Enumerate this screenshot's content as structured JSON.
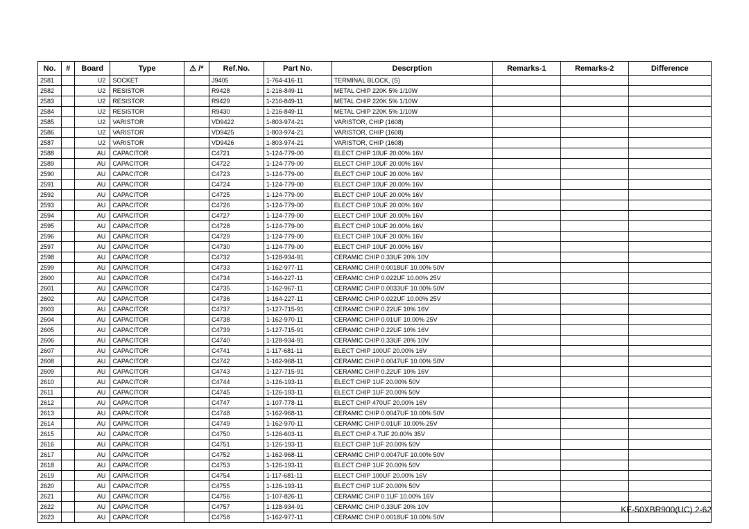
{
  "footer": "KE-50XBR900(UC)    2-62",
  "headers": {
    "no": "No.",
    "hash": "#",
    "board": "Board",
    "type": "Type",
    "warn": "⚠ /*",
    "ref": "Ref.No.",
    "part": "Part No.",
    "desc": "Descrption",
    "rem1": "Remarks-1",
    "rem2": "Remarks-2",
    "diff": "Difference"
  },
  "rows": [
    {
      "no": "2581",
      "board": "U2",
      "type": "SOCKET",
      "ref": "J9405",
      "part": "1-764-416-11",
      "desc": "TERMINAL BLOCK, (S)"
    },
    {
      "no": "2582",
      "board": "U2",
      "type": "RESISTOR",
      "ref": "R9428",
      "part": "1-216-849-11",
      "desc": "METAL CHIP     220K  5%     1/10W"
    },
    {
      "no": "2583",
      "board": "U2",
      "type": "RESISTOR",
      "ref": "R9429",
      "part": "1-216-849-11",
      "desc": "METAL CHIP     220K  5%     1/10W"
    },
    {
      "no": "2584",
      "board": "U2",
      "type": "RESISTOR",
      "ref": "R9430",
      "part": "1-216-849-11",
      "desc": "METAL CHIP     220K  5%     1/10W"
    },
    {
      "no": "2585",
      "board": "U2",
      "type": "VARISTOR",
      "ref": "VD9422",
      "part": "1-803-974-21",
      "desc": "VARISTOR, CHIP               (1608)"
    },
    {
      "no": "2586",
      "board": "U2",
      "type": "VARISTOR",
      "ref": "VD9425",
      "part": "1-803-974-21",
      "desc": "VARISTOR, CHIP               (1608)"
    },
    {
      "no": "2587",
      "board": "U2",
      "type": "VARISTOR",
      "ref": "VD9426",
      "part": "1-803-974-21",
      "desc": "VARISTOR, CHIP               (1608)"
    },
    {
      "no": "2588",
      "board": "AU",
      "type": "CAPACITOR",
      "ref": "C4721",
      "part": "1-124-779-00",
      "desc": "ELECT CHIP    10UF          20.00% 16V"
    },
    {
      "no": "2589",
      "board": "AU",
      "type": "CAPACITOR",
      "ref": "C4722",
      "part": "1-124-779-00",
      "desc": "ELECT CHIP    10UF          20.00% 16V"
    },
    {
      "no": "2590",
      "board": "AU",
      "type": "CAPACITOR",
      "ref": "C4723",
      "part": "1-124-779-00",
      "desc": "ELECT CHIP    10UF          20.00% 16V"
    },
    {
      "no": "2591",
      "board": "AU",
      "type": "CAPACITOR",
      "ref": "C4724",
      "part": "1-124-779-00",
      "desc": "ELECT CHIP    10UF          20.00% 16V"
    },
    {
      "no": "2592",
      "board": "AU",
      "type": "CAPACITOR",
      "ref": "C4725",
      "part": "1-124-779-00",
      "desc": "ELECT CHIP    10UF          20.00% 16V"
    },
    {
      "no": "2593",
      "board": "AU",
      "type": "CAPACITOR",
      "ref": "C4726",
      "part": "1-124-779-00",
      "desc": "ELECT CHIP    10UF          20.00% 16V"
    },
    {
      "no": "2594",
      "board": "AU",
      "type": "CAPACITOR",
      "ref": "C4727",
      "part": "1-124-779-00",
      "desc": "ELECT CHIP    10UF          20.00% 16V"
    },
    {
      "no": "2595",
      "board": "AU",
      "type": "CAPACITOR",
      "ref": "C4728",
      "part": "1-124-779-00",
      "desc": "ELECT CHIP    10UF          20.00% 16V"
    },
    {
      "no": "2596",
      "board": "AU",
      "type": "CAPACITOR",
      "ref": "C4729",
      "part": "1-124-779-00",
      "desc": "ELECT CHIP    10UF          20.00% 16V"
    },
    {
      "no": "2597",
      "board": "AU",
      "type": "CAPACITOR",
      "ref": "C4730",
      "part": "1-124-779-00",
      "desc": "ELECT CHIP    10UF          20.00% 16V"
    },
    {
      "no": "2598",
      "board": "AU",
      "type": "CAPACITOR",
      "ref": "C4732",
      "part": "1-128-934-91",
      "desc": "CERAMIC CHIP 0.33UF        20%    10V"
    },
    {
      "no": "2599",
      "board": "AU",
      "type": "CAPACITOR",
      "ref": "C4733",
      "part": "1-162-977-11",
      "desc": "CERAMIC CHIP 0.0018UF    10.00% 50V"
    },
    {
      "no": "2600",
      "board": "AU",
      "type": "CAPACITOR",
      "ref": "C4734",
      "part": "1-164-227-11",
      "desc": "CERAMIC CHIP 0.022UF      10.00% 25V"
    },
    {
      "no": "2601",
      "board": "AU",
      "type": "CAPACITOR",
      "ref": "C4735",
      "part": "1-162-967-11",
      "desc": "CERAMIC CHIP 0.0033UF    10.00% 50V"
    },
    {
      "no": "2602",
      "board": "AU",
      "type": "CAPACITOR",
      "ref": "C4736",
      "part": "1-164-227-11",
      "desc": "CERAMIC CHIP 0.022UF      10.00% 25V"
    },
    {
      "no": "2603",
      "board": "AU",
      "type": "CAPACITOR",
      "ref": "C4737",
      "part": "1-127-715-91",
      "desc": "CERAMIC CHIP 0.22UF        10%    16V"
    },
    {
      "no": "2604",
      "board": "AU",
      "type": "CAPACITOR",
      "ref": "C4738",
      "part": "1-162-970-11",
      "desc": "CERAMIC CHIP 0.01UF        10.00% 25V"
    },
    {
      "no": "2605",
      "board": "AU",
      "type": "CAPACITOR",
      "ref": "C4739",
      "part": "1-127-715-91",
      "desc": "CERAMIC CHIP 0.22UF        10%    16V"
    },
    {
      "no": "2606",
      "board": "AU",
      "type": "CAPACITOR",
      "ref": "C4740",
      "part": "1-128-934-91",
      "desc": "CERAMIC CHIP 0.33UF        20%    10V"
    },
    {
      "no": "2607",
      "board": "AU",
      "type": "CAPACITOR",
      "ref": "C4741",
      "part": "1-117-681-11",
      "desc": "ELECT CHIP    100UF         20.00% 16V"
    },
    {
      "no": "2608",
      "board": "AU",
      "type": "CAPACITOR",
      "ref": "C4742",
      "part": "1-162-968-11",
      "desc": "CERAMIC CHIP 0.0047UF    10.00% 50V"
    },
    {
      "no": "2609",
      "board": "AU",
      "type": "CAPACITOR",
      "ref": "C4743",
      "part": "1-127-715-91",
      "desc": "CERAMIC CHIP 0.22UF        10%    16V"
    },
    {
      "no": "2610",
      "board": "AU",
      "type": "CAPACITOR",
      "ref": "C4744",
      "part": "1-126-193-11",
      "desc": "ELECT CHIP    1UF             20.00% 50V"
    },
    {
      "no": "2611",
      "board": "AU",
      "type": "CAPACITOR",
      "ref": "C4745",
      "part": "1-126-193-11",
      "desc": "ELECT CHIP    1UF             20.00% 50V"
    },
    {
      "no": "2612",
      "board": "AU",
      "type": "CAPACITOR",
      "ref": "C4747",
      "part": "1-107-778-11",
      "desc": "ELECT CHIP    470UF         20.00% 16V"
    },
    {
      "no": "2613",
      "board": "AU",
      "type": "CAPACITOR",
      "ref": "C4748",
      "part": "1-162-968-11",
      "desc": "CERAMIC CHIP 0.0047UF    10.00% 50V"
    },
    {
      "no": "2614",
      "board": "AU",
      "type": "CAPACITOR",
      "ref": "C4749",
      "part": "1-162-970-11",
      "desc": "CERAMIC CHIP 0.01UF        10.00% 25V"
    },
    {
      "no": "2615",
      "board": "AU",
      "type": "CAPACITOR",
      "ref": "C4750",
      "part": "1-126-603-11",
      "desc": "ELECT CHIP    4.7UF          20.00% 35V"
    },
    {
      "no": "2616",
      "board": "AU",
      "type": "CAPACITOR",
      "ref": "C4751",
      "part": "1-126-193-11",
      "desc": "ELECT CHIP    1UF             20.00% 50V"
    },
    {
      "no": "2617",
      "board": "AU",
      "type": "CAPACITOR",
      "ref": "C4752",
      "part": "1-162-968-11",
      "desc": "CERAMIC CHIP 0.0047UF    10.00% 50V"
    },
    {
      "no": "2618",
      "board": "AU",
      "type": "CAPACITOR",
      "ref": "C4753",
      "part": "1-126-193-11",
      "desc": "ELECT CHIP    1UF             20.00% 50V"
    },
    {
      "no": "2619",
      "board": "AU",
      "type": "CAPACITOR",
      "ref": "C4754",
      "part": "1-117-681-11",
      "desc": "ELECT CHIP    100UF         20.00% 16V"
    },
    {
      "no": "2620",
      "board": "AU",
      "type": "CAPACITOR",
      "ref": "C4755",
      "part": "1-126-193-11",
      "desc": "ELECT CHIP    1UF             20.00% 50V"
    },
    {
      "no": "2621",
      "board": "AU",
      "type": "CAPACITOR",
      "ref": "C4756",
      "part": "1-107-826-11",
      "desc": "CERAMIC CHIP 0.1UF          10.00% 16V"
    },
    {
      "no": "2622",
      "board": "AU",
      "type": "CAPACITOR",
      "ref": "C4757",
      "part": "1-128-934-91",
      "desc": "CERAMIC CHIP 0.33UF        20%    10V"
    },
    {
      "no": "2623",
      "board": "AU",
      "type": "CAPACITOR",
      "ref": "C4758",
      "part": "1-162-977-11",
      "desc": "CERAMIC CHIP 0.0018UF    10.00% 50V"
    }
  ]
}
